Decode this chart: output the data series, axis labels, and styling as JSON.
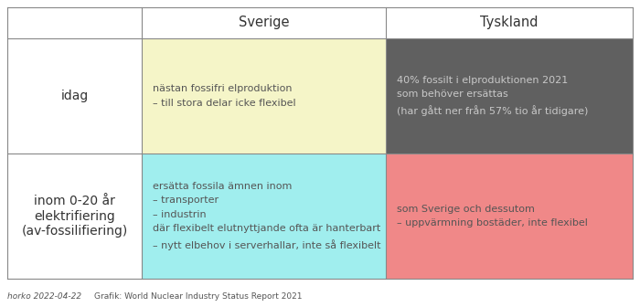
{
  "title_sverige": "Sverige",
  "title_tyskland": "Tyskland",
  "row1_label": "idag",
  "row2_label": "inom 0-20 år\nelektrifiering\n(av-fossilifiering)",
  "cell_sverige_idag_text": "nästan fossifri elproduktion\n– till stora delar icke flexibel",
  "cell_sverige_idag_color": "#f5f5c8",
  "cell_tyskland_idag_text": "40% fossilt i elproduktionen 2021\nsom behöver ersättas\n(har gått ner från 57% tio år tidigare)",
  "cell_tyskland_idag_color": "#606060",
  "cell_tyskland_idag_text_color": "#c8c8c8",
  "cell_sverige_future_text": "ersätta fossila ämnen inom\n– transporter\n– industrin\ndär flexibelt elutnyttjande ofta är hanterbart\n– nytt elbehov i serverhallar, inte så flexibelt",
  "cell_sverige_future_color": "#a0eeee",
  "cell_tyskland_future_text": "som Sverige och dessutom\n– uppvärmning bostäder, inte flexibel",
  "cell_tyskland_future_color": "#f08888",
  "footer_left": "horko 2022-04-22",
  "footer_right": "Grafik: World Nuclear Industry Status Report 2021",
  "background_color": "#ffffff",
  "border_color": "#888888",
  "text_dark": "#333333",
  "text_mid": "#555555",
  "header_fontsize": 10.5,
  "label_fontsize": 10,
  "cell_fontsize": 8.0,
  "footer_fontsize": 6.5
}
